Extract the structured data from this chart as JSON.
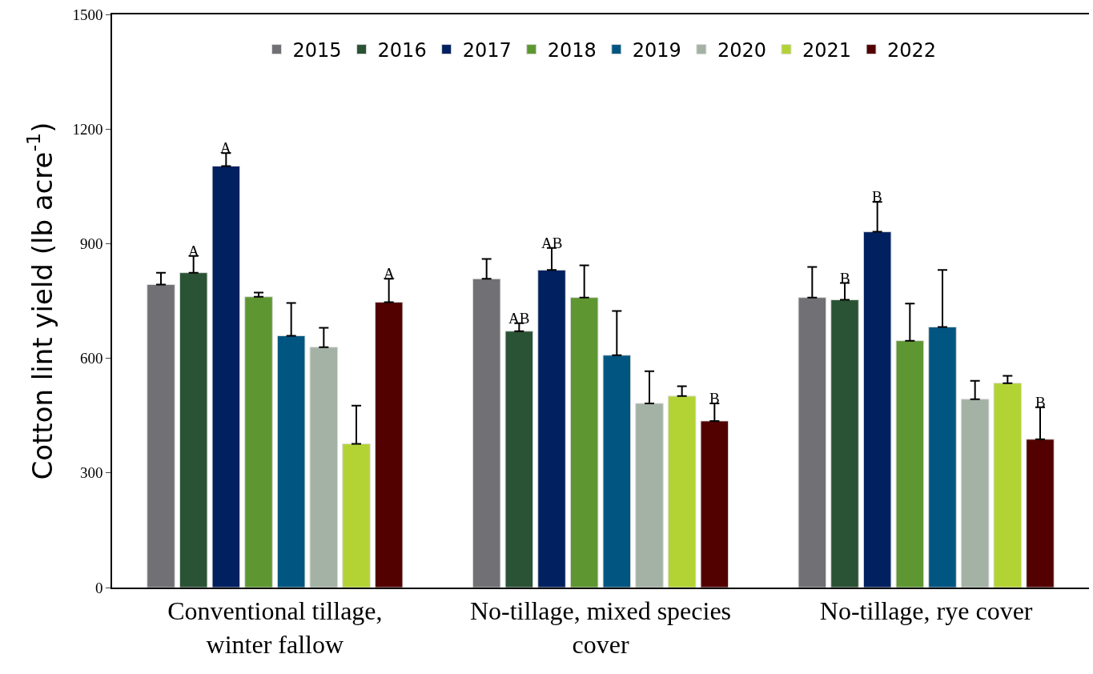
{
  "chart_data": {
    "type": "bar",
    "ylabel": "Cotton lint yield (lb acre$^{-1}$)",
    "categories": [
      "Conventional tillage,\nwinter fallow",
      "No-tillage, mixed species\ncover",
      "No-tillage, rye cover"
    ],
    "ylim": [
      0,
      1500
    ],
    "yticks": [
      0,
      300,
      600,
      900,
      1200,
      1500
    ],
    "legend": "top",
    "series": [
      {
        "name": "2015",
        "color": "#717074",
        "values": [
          793,
          808,
          759
        ],
        "errors": [
          [
            793,
            824
          ],
          [
            808,
            860
          ],
          [
            759,
            839
          ]
        ]
      },
      {
        "name": "2016",
        "color": "#2a5234",
        "values": [
          824,
          671,
          753
        ],
        "errors": [
          [
            824,
            868
          ],
          [
            671,
            692
          ],
          [
            753,
            797
          ]
        ],
        "value_labels": [
          "A",
          "AB",
          "B"
        ]
      },
      {
        "name": "2017",
        "color": "#002060",
        "values": [
          1103,
          831,
          931
        ],
        "errors": [
          [
            1103,
            1137
          ],
          [
            831,
            889
          ],
          [
            931,
            1009
          ]
        ],
        "value_labels": [
          "A",
          "AB",
          "B"
        ]
      },
      {
        "name": "2018",
        "color": "#5e9732",
        "values": [
          761,
          759,
          646
        ],
        "errors": [
          [
            761,
            772
          ],
          [
            759,
            843
          ],
          [
            646,
            743
          ]
        ]
      },
      {
        "name": "2019",
        "color": "#005581",
        "values": [
          659,
          608,
          682
        ],
        "errors": [
          [
            659,
            745
          ],
          [
            608,
            724
          ],
          [
            682,
            831
          ]
        ]
      },
      {
        "name": "2020",
        "color": "#a3b2a4",
        "values": [
          629,
          482,
          493
        ],
        "errors": [
          [
            629,
            680
          ],
          [
            482,
            566
          ],
          [
            493,
            541
          ]
        ]
      },
      {
        "name": "2021",
        "color": "#b3d335",
        "values": [
          376,
          501,
          535
        ],
        "errors": [
          [
            376,
            476
          ],
          [
            501,
            527
          ],
          [
            535,
            554
          ]
        ]
      },
      {
        "name": "2022",
        "color": "#520000",
        "values": [
          747,
          436,
          388
        ],
        "errors": [
          [
            747,
            808
          ],
          [
            436,
            482
          ],
          [
            388,
            472
          ]
        ],
        "value_labels": [
          "A",
          "B",
          "B"
        ]
      }
    ]
  }
}
